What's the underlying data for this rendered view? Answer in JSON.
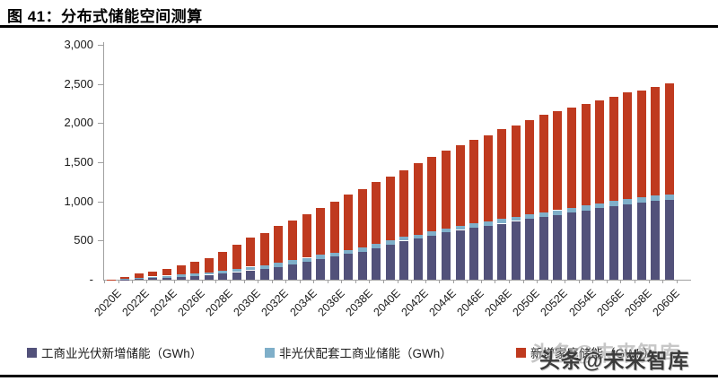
{
  "header": {
    "title": "图 41：分布式储能空间测算"
  },
  "watermark": "头条@未来智库",
  "chart_data": {
    "type": "bar",
    "stacked": true,
    "title": "分布式储能空间测算",
    "unit": "GWh",
    "ylim": [
      0,
      3000
    ],
    "ytick_values": [
      3000,
      2500,
      2000,
      1500,
      1000,
      500,
      0
    ],
    "ytick_labels": [
      "3,000",
      "2,500",
      "2,000",
      "1,500",
      "1,000",
      "500",
      "-"
    ],
    "xtick_label_every": 2,
    "legend_position": "bottom",
    "grid": false,
    "categories": [
      "2020E",
      "2021E",
      "2022E",
      "2023E",
      "2024E",
      "2025E",
      "2026E",
      "2027E",
      "2028E",
      "2029E",
      "2030E",
      "2031E",
      "2032E",
      "2033E",
      "2034E",
      "2035E",
      "2036E",
      "2037E",
      "2038E",
      "2039E",
      "2040E",
      "2041E",
      "2042E",
      "2043E",
      "2044E",
      "2045E",
      "2046E",
      "2047E",
      "2048E",
      "2049E",
      "2050E",
      "2051E",
      "2052E",
      "2053E",
      "2054E",
      "2055E",
      "2056E",
      "2057E",
      "2058E",
      "2059E",
      "2060E"
    ],
    "series": [
      {
        "name": "工商业光伏新增储能（GWh）",
        "color": "#52517A",
        "values": [
          1,
          5,
          10,
          18,
          28,
          38,
          50,
          63,
          76,
          97,
          120,
          135,
          165,
          200,
          225,
          268,
          293,
          327,
          360,
          405,
          450,
          498,
          522,
          566,
          602,
          636,
          660,
          682,
          716,
          750,
          775,
          800,
          825,
          855,
          885,
          912,
          940,
          962,
          985,
          1005,
          1020
        ]
      },
      {
        "name": "非光伏配套工商业储能（GWh）",
        "color": "#7FAFC9",
        "values": [
          1,
          4,
          15,
          22,
          24,
          26,
          28,
          30,
          34,
          38,
          45,
          50,
          50,
          50,
          55,
          48,
          48,
          48,
          48,
          50,
          55,
          48,
          55,
          48,
          48,
          48,
          57,
          58,
          58,
          48,
          58,
          60,
          62,
          62,
          64,
          64,
          66,
          66,
          68,
          68,
          70
        ]
      },
      {
        "name": "新增家庭储能（GWh）",
        "color": "#BF3A1F",
        "values": [
          3,
          21,
          50,
          65,
          83,
          116,
          148,
          185,
          240,
          310,
          375,
          415,
          468,
          510,
          552,
          599,
          651,
          708,
          745,
          790,
          808,
          848,
          913,
          952,
          996,
          1031,
          1067,
          1101,
          1147,
          1169,
          1203,
          1245,
          1264,
          1280,
          1294,
          1312,
          1328,
          1363,
          1361,
          1387,
          1416
        ]
      }
    ]
  }
}
